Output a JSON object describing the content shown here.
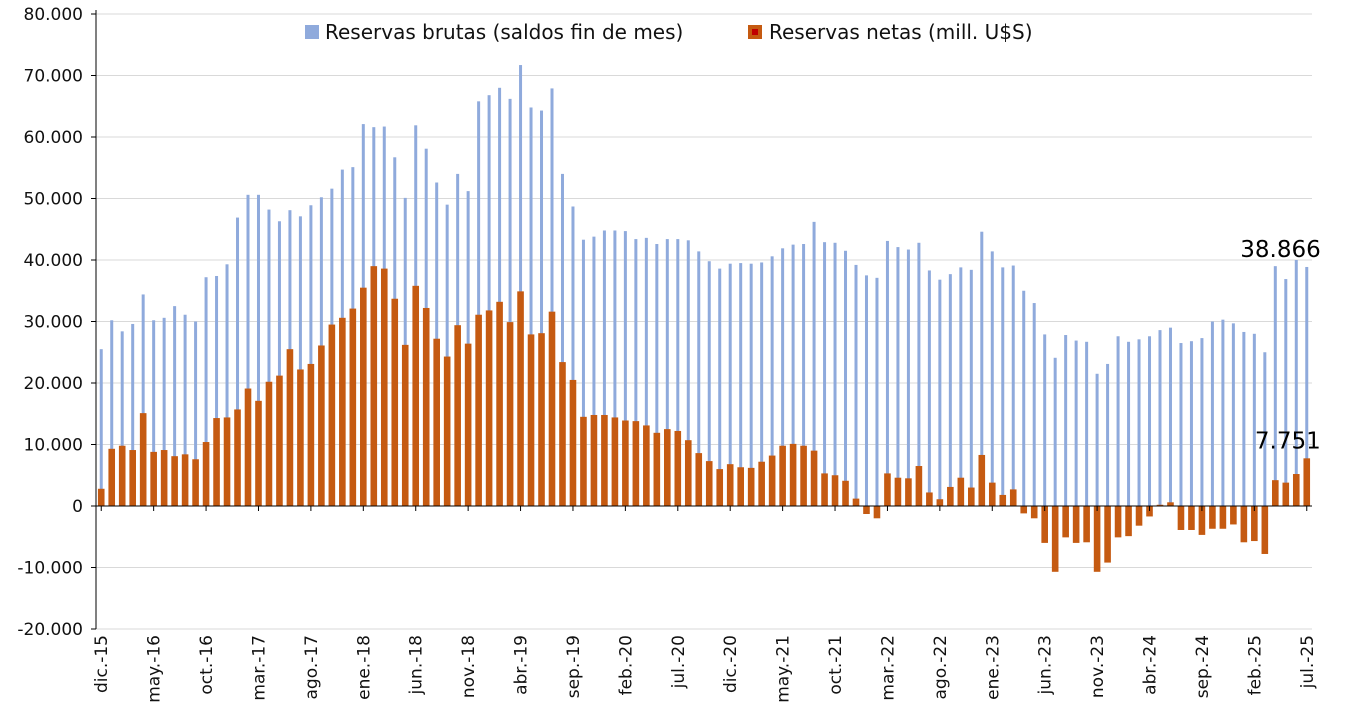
{
  "chart_data": {
    "type": "bar",
    "title": "",
    "xlabel": "",
    "ylabel": "",
    "ylim": [
      -20000,
      80000
    ],
    "yticks": [
      80000,
      70000,
      60000,
      50000,
      40000,
      30000,
      20000,
      10000,
      0,
      -10000,
      -20000
    ],
    "ytick_labels": [
      "80.000",
      "70.000",
      "60.000",
      "50.000",
      "40.000",
      "30.000",
      "20.000",
      "10.000",
      "0",
      "-10.000",
      "-20.000"
    ],
    "grid": true,
    "legend_position": "top-center",
    "xtick_labels": [
      {
        "index": 0,
        "label": "dic.-15"
      },
      {
        "index": 5,
        "label": "may.-16"
      },
      {
        "index": 10,
        "label": "oct.-16"
      },
      {
        "index": 15,
        "label": "mar.-17"
      },
      {
        "index": 20,
        "label": "ago.-17"
      },
      {
        "index": 25,
        "label": "ene.-18"
      },
      {
        "index": 30,
        "label": "jun.-18"
      },
      {
        "index": 35,
        "label": "nov.-18"
      },
      {
        "index": 40,
        "label": "abr.-19"
      },
      {
        "index": 45,
        "label": "sep.-19"
      },
      {
        "index": 50,
        "label": "feb.-20"
      },
      {
        "index": 55,
        "label": "jul.-20"
      },
      {
        "index": 60,
        "label": "dic.-20"
      },
      {
        "index": 65,
        "label": "may.-21"
      },
      {
        "index": 70,
        "label": "oct.-21"
      },
      {
        "index": 75,
        "label": "mar.-22"
      },
      {
        "index": 80,
        "label": "ago.-22"
      },
      {
        "index": 85,
        "label": "ene.-23"
      },
      {
        "index": 90,
        "label": "jun.-23"
      },
      {
        "index": 95,
        "label": "nov.-23"
      },
      {
        "index": 100,
        "label": "abr.-24"
      },
      {
        "index": 105,
        "label": "sep.-24"
      },
      {
        "index": 110,
        "label": "feb.-25"
      },
      {
        "index": 115,
        "label": "jul.-25"
      }
    ],
    "series": [
      {
        "name": "Reservas brutas (saldos fin de mes)",
        "color": "#8faadc",
        "values": [
          25500,
          30200,
          28400,
          29600,
          34400,
          30200,
          30600,
          32500,
          31100,
          30000,
          37200,
          37400,
          39300,
          46900,
          50600,
          50600,
          48200,
          46300,
          48100,
          47100,
          48900,
          50200,
          51600,
          54700,
          55100,
          62100,
          61600,
          61700,
          56700,
          50100,
          61900,
          58100,
          52600,
          49000,
          54000,
          51200,
          65800,
          66800,
          68000,
          66200,
          71700,
          64800,
          64300,
          67900,
          54000,
          48700,
          43300,
          43800,
          44800,
          44800,
          44700,
          43400,
          43600,
          42600,
          43400,
          43400,
          43200,
          41400,
          39800,
          38600,
          39400,
          39500,
          39400,
          39600,
          40600,
          41900,
          42500,
          42600,
          46200,
          42900,
          42800,
          41500,
          39200,
          37500,
          37100,
          43100,
          42100,
          41700,
          42800,
          38300,
          36800,
          37700,
          38800,
          38400,
          44600,
          41400,
          38800,
          39100,
          35000,
          33000,
          27900,
          24100,
          27800,
          26900,
          26700,
          21500,
          23100,
          27600,
          26700,
          27100,
          27600,
          28600,
          29000,
          26500,
          26800,
          27300,
          30000,
          30300,
          29700,
          28300,
          28000,
          25000,
          39000,
          36900,
          40000,
          38866
        ]
      },
      {
        "name": "Reservas netas (mill. U$S)",
        "color": "#c55a11",
        "values": [
          2800,
          9300,
          9800,
          9100,
          15100,
          8800,
          9100,
          8100,
          8400,
          7600,
          10400,
          14300,
          14400,
          15700,
          19100,
          17100,
          20200,
          21200,
          25500,
          22200,
          23100,
          26100,
          29500,
          30600,
          32100,
          35500,
          39000,
          38600,
          33700,
          26200,
          35800,
          32200,
          27200,
          24300,
          29400,
          26400,
          31100,
          31800,
          33200,
          29900,
          34900,
          27900,
          28100,
          31600,
          23400,
          20500,
          14500,
          14800,
          14800,
          14400,
          13900,
          13800,
          13100,
          11900,
          12500,
          12200,
          10700,
          8600,
          7300,
          6000,
          6800,
          6300,
          6200,
          7200,
          8200,
          9800,
          10100,
          9800,
          9000,
          5300,
          5000,
          4100,
          1200,
          -1300,
          -2000,
          5300,
          4600,
          4500,
          6500,
          2200,
          1100,
          3100,
          4600,
          3000,
          8300,
          3800,
          1800,
          2700,
          -1200,
          -2000,
          -6000,
          -10700,
          -5100,
          -6000,
          -5900,
          -10700,
          -9200,
          -5100,
          -4900,
          -3200,
          -1700,
          200,
          600,
          -3900,
          -3900,
          -4700,
          -3700,
          -3700,
          -3000,
          -5900,
          -5700,
          -7800,
          4200,
          3800,
          5200,
          7751
        ]
      }
    ],
    "annotations": [
      {
        "series": 0,
        "index": 115,
        "text": "38.866"
      },
      {
        "series": 1,
        "index": 115,
        "text": "7.751"
      }
    ]
  }
}
